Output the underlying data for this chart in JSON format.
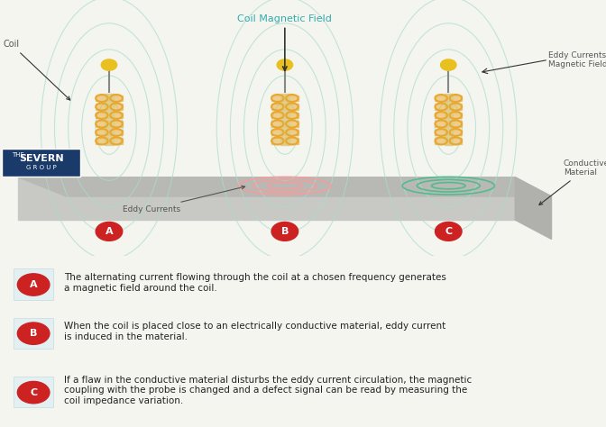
{
  "bg_color": "#f5f5f0",
  "title_text": "Coil Magnetic Field",
  "label_A": "A",
  "label_B": "B",
  "label_C": "C",
  "text_A": "The alternating current flowing through the coil at a chosen frequency generates\na magnetic field around the coil.",
  "text_B": "When the coil is placed close to an electrically conductive material, eddy current\nis induced in the material.",
  "text_C": "If a flaw in the conductive material disturbs the eddy current circulation, the magnetic\ncoupling with the probe is changed and a defect signal can be read by measuring the\ncoil impedance variation.",
  "label_color": "#cc2222",
  "coil_color": "#e8a830",
  "field_line_color": "#aaddcc",
  "eddy_color": "#ff9999",
  "eddy_color_C": "#44bb88",
  "plate_color": "#c8c8c4",
  "plate_top_color": "#b8b8b4",
  "text_color": "#222222",
  "severn_bg": "#1a3a6a",
  "coil_label": "Coil",
  "eddy_currents_label": "Eddy Currents",
  "ec_magnetic_label": "Eddy Currents\nMagnetic Field",
  "conductive_label": "Conductive\nMaterial"
}
